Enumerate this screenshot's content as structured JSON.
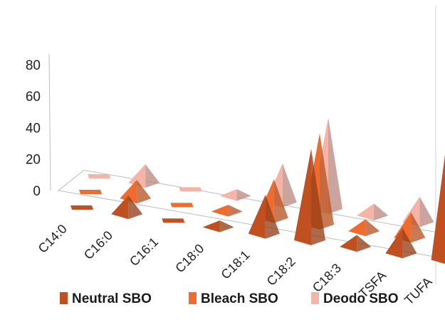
{
  "chart_data": {
    "type": "bar",
    "style": "3d-pyramid",
    "categories": [
      "C14:0",
      "C16:0",
      "C16:1",
      "C18:0",
      "C18:1",
      "C18:2",
      "C18:3",
      "TSFA",
      "TUFA"
    ],
    "series": [
      {
        "name": "Neutral SBO",
        "color": "#c0501f",
        "values": [
          0.1,
          11,
          0.1,
          4,
          23,
          54,
          7,
          15,
          77
        ]
      },
      {
        "name": "Bleach SBO",
        "color": "#f06c2e",
        "values": [
          0.1,
          11,
          0.1,
          4,
          23,
          54,
          7,
          15,
          77
        ]
      },
      {
        "name": "Deodo SBO",
        "color": "#f4b4a8",
        "values": [
          0.1,
          11,
          0.1,
          4,
          23,
          54,
          7,
          15,
          77
        ]
      }
    ],
    "yticks": [
      0,
      20,
      40,
      60,
      80
    ],
    "ylim": [
      0,
      80
    ],
    "title": "",
    "xlabel": "",
    "ylabel": "",
    "legend_position": "bottom",
    "grid": false
  }
}
